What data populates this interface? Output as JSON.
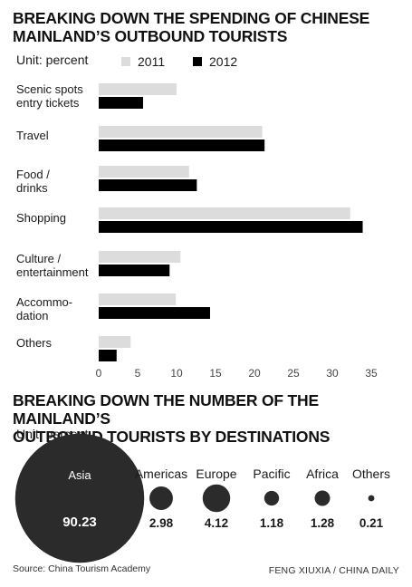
{
  "chart_data": [
    {
      "type": "bar",
      "orientation": "horizontal",
      "title_lines": [
        "BREAKING DOWN THE SPENDING OF CHINESE",
        "MAINLAND’S OUTBOUND TOURISTS"
      ],
      "unit": "Unit: percent",
      "categories": [
        [
          "Scenic spots",
          "entry tickets"
        ],
        [
          "Travel"
        ],
        [
          "Food /",
          "drinks"
        ],
        [
          "Shopping"
        ],
        [
          "Culture /",
          "entertainment"
        ],
        [
          "Accommo-",
          "dation"
        ],
        [
          "Others"
        ]
      ],
      "series": [
        {
          "name": "2011",
          "color": "#dcdcdc",
          "values": [
            10.0,
            21.0,
            11.6,
            32.3,
            10.5,
            9.9,
            4.1
          ]
        },
        {
          "name": "2012",
          "color": "#000000",
          "values": [
            5.7,
            21.3,
            12.6,
            33.9,
            9.1,
            14.3,
            2.3
          ]
        }
      ],
      "xlim": [
        0,
        35
      ],
      "xticks": [
        "0",
        "5",
        "10",
        "15",
        "20",
        "25",
        "30",
        "35"
      ],
      "legend_position": "top"
    },
    {
      "type": "bubble",
      "title_lines": [
        "BREAKING DOWN THE NUMBER OF THE MAINLAND’S",
        "OUTBOUND TOURISTS BY DESTINATIONS"
      ],
      "unit": "Unit: percent",
      "categories": [
        "Asia",
        "Americas",
        "Europe",
        "Pacific",
        "Africa",
        "Others"
      ],
      "values": [
        90.23,
        2.98,
        4.12,
        1.18,
        1.28,
        0.21
      ],
      "labels": [
        "90.23",
        "2.98",
        "4.12",
        "1.18",
        "1.28",
        "0.21"
      ],
      "color": "#2b2b2b"
    }
  ],
  "footer": {
    "source": "Source: China Tourism Academy",
    "credit": "FENG XIUXIA / CHINA DAILY"
  }
}
